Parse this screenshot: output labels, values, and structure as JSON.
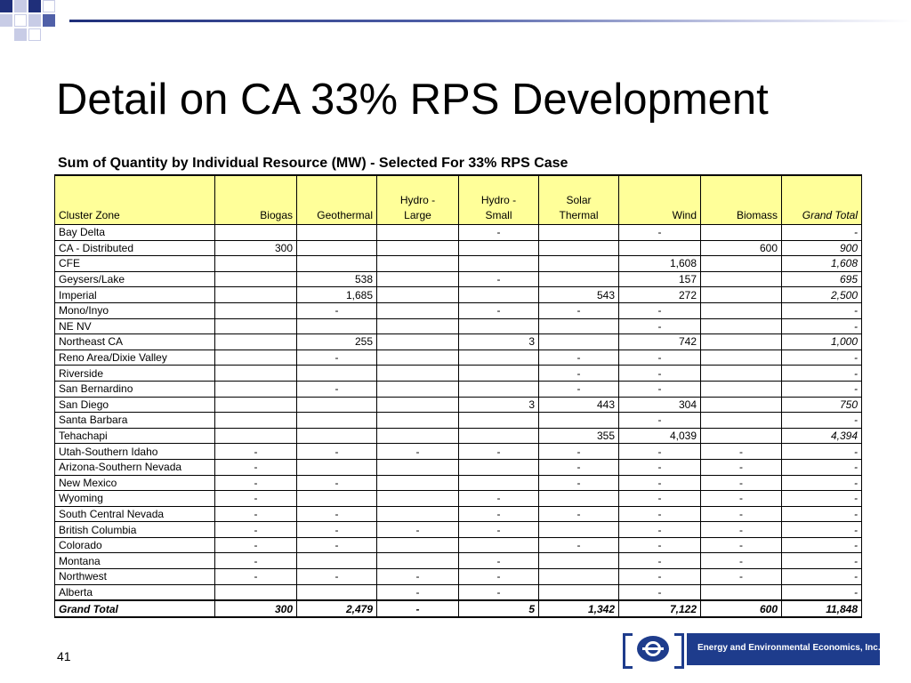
{
  "slide": {
    "title": "Detail on CA 33% RPS Development",
    "subtitle": "Sum of Quantity by Individual Resource (MW) - Selected For 33% RPS Case",
    "page_number": "41",
    "logo_text": "Energy and Environmental Economics, Inc."
  },
  "colors": {
    "header_fill": "#ffff99",
    "brand_blue": "#1e3c8c",
    "accent_bar": "#1f2f7a"
  },
  "table": {
    "headers": [
      [
        "",
        "Cluster Zone"
      ],
      [
        "",
        "Biogas"
      ],
      [
        "",
        "Geothermal"
      ],
      [
        "Hydro -",
        "Large"
      ],
      [
        "Hydro -",
        "Small"
      ],
      [
        "Solar",
        "Thermal"
      ],
      [
        "",
        "Wind"
      ],
      [
        "",
        "Biomass"
      ],
      [
        "",
        "Grand Total"
      ]
    ],
    "rows": [
      [
        "Bay Delta",
        "",
        "",
        "",
        "-",
        "",
        "-",
        "",
        "-"
      ],
      [
        "CA - Distributed",
        "300",
        "",
        "",
        "",
        "",
        "",
        "600",
        "900"
      ],
      [
        "CFE",
        "",
        "",
        "",
        "",
        "",
        "1,608",
        "",
        "1,608"
      ],
      [
        "Geysers/Lake",
        "",
        "538",
        "",
        "-",
        "",
        "157",
        "",
        "695"
      ],
      [
        "Imperial",
        "",
        "1,685",
        "",
        "",
        "543",
        "272",
        "",
        "2,500"
      ],
      [
        "Mono/Inyo",
        "",
        "-",
        "",
        "-",
        "-",
        "-",
        "",
        "-"
      ],
      [
        "NE NV",
        "",
        "",
        "",
        "",
        "",
        "-",
        "",
        "-"
      ],
      [
        "Northeast CA",
        "",
        "255",
        "",
        "3",
        "",
        "742",
        "",
        "1,000"
      ],
      [
        "Reno Area/Dixie Valley",
        "",
        "-",
        "",
        "",
        "-",
        "-",
        "",
        "-"
      ],
      [
        "Riverside",
        "",
        "",
        "",
        "",
        "-",
        "-",
        "",
        "-"
      ],
      [
        "San Bernardino",
        "",
        "-",
        "",
        "",
        "-",
        "-",
        "",
        "-"
      ],
      [
        "San Diego",
        "",
        "",
        "",
        "3",
        "443",
        "304",
        "",
        "750"
      ],
      [
        "Santa Barbara",
        "",
        "",
        "",
        "",
        "",
        "-",
        "",
        "-"
      ],
      [
        "Tehachapi",
        "",
        "",
        "",
        "",
        "355",
        "4,039",
        "",
        "4,394"
      ],
      [
        "Utah-Southern Idaho",
        "-",
        "-",
        "-",
        "-",
        "-",
        "-",
        "-",
        "-"
      ],
      [
        "Arizona-Southern Nevada",
        "-",
        "",
        "",
        "",
        "-",
        "-",
        "-",
        "-"
      ],
      [
        "New Mexico",
        "-",
        "-",
        "",
        "",
        "-",
        "-",
        "-",
        "-"
      ],
      [
        "Wyoming",
        "-",
        "",
        "",
        "-",
        "",
        "-",
        "-",
        "-"
      ],
      [
        "South Central Nevada",
        "-",
        "-",
        "",
        "-",
        "-",
        "-",
        "-",
        "-"
      ],
      [
        "British Columbia",
        "-",
        "-",
        "-",
        "-",
        "",
        "-",
        "-",
        "-"
      ],
      [
        "Colorado",
        "-",
        "-",
        "",
        "",
        "-",
        "-",
        "-",
        "-"
      ],
      [
        "Montana",
        "-",
        "",
        "",
        "-",
        "",
        "-",
        "-",
        "-"
      ],
      [
        "Northwest",
        "-",
        "-",
        "-",
        "-",
        "",
        "-",
        "-",
        "-"
      ],
      [
        "Alberta",
        "",
        "",
        "-",
        "-",
        "",
        "-",
        "",
        "-"
      ]
    ],
    "total": [
      "Grand Total",
      "300",
      "2,479",
      "-",
      "5",
      "1,342",
      "7,122",
      "600",
      "11,848"
    ]
  }
}
